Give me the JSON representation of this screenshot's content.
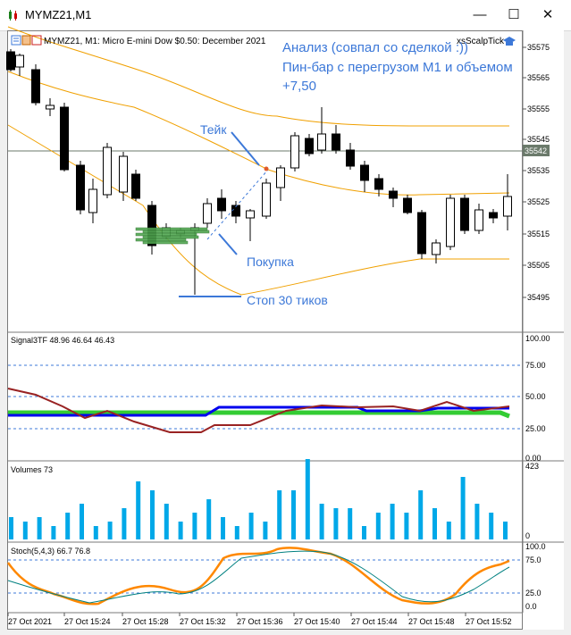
{
  "window": {
    "title": "MYMZ21,M1",
    "minimize": "—",
    "maximize": "☐",
    "close": "✕"
  },
  "main_chart": {
    "header": "MYMZ21, M1:  Micro E-mini Dow $0.50: December 2021",
    "expert": "xsScalpTick",
    "current_price": "35542",
    "price_ticks": [
      "35575",
      "35565",
      "35555",
      "35545",
      "35535",
      "35525",
      "35515",
      "35505",
      "35495"
    ],
    "annotation_lines": [
      "Анализ (совпал со сделкой :))",
      "Пин-бар с перегрузом М1 и объемом",
      "+7,50"
    ],
    "label_take": "Тейк",
    "label_buy": "Покупка",
    "label_stop": "Стоп 30 тиков",
    "colors": {
      "bull": "#ffffff",
      "bear": "#000000",
      "band": "#f0a000",
      "annotation": "#3c78d8",
      "volume_profile": "#52a852"
    }
  },
  "signal_panel": {
    "label": "Signal3TF 48.96 46.64 46.43",
    "ticks": [
      "100.00",
      "75.00",
      "50.00",
      "25.00",
      "0.00"
    ],
    "colors": {
      "blue": "#0000ee",
      "green": "#33cc33",
      "red": "#992222"
    }
  },
  "volume_panel": {
    "label": "Volumes 73",
    "ticks": [
      "423",
      "0"
    ],
    "color": "#00a8e8"
  },
  "stoch_panel": {
    "label": "Stoch(5,4,3) 66.7 76.8",
    "ticks": [
      "100.0",
      "75.0",
      "25.0",
      "0.0"
    ],
    "colors": {
      "main": "#ff8800",
      "signal": "#008080"
    }
  },
  "time_axis": [
    "27 Oct 2021",
    "27 Oct 15:24",
    "27 Oct 15:28",
    "27 Oct 15:32",
    "27 Oct 15:36",
    "27 Oct 15:40",
    "27 Oct 15:44",
    "27 Oct 15:48",
    "27 Oct 15:52"
  ]
}
